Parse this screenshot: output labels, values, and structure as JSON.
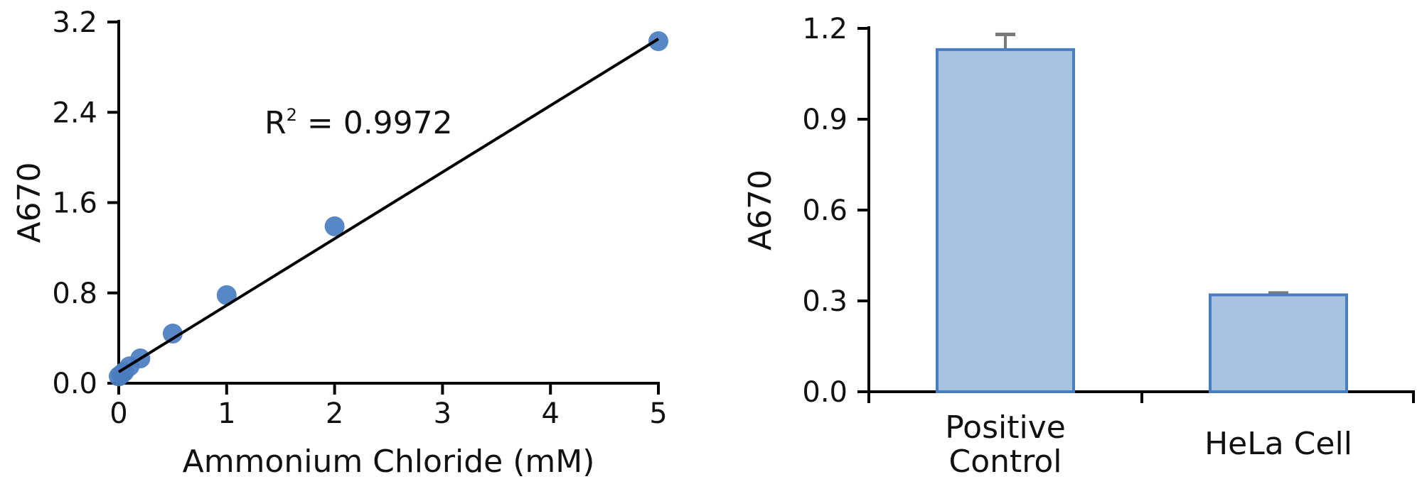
{
  "chart_data": [
    {
      "type": "scatter",
      "title": "",
      "xlabel": "Ammonium Chloride (mM)",
      "ylabel": "A670",
      "xlim": [
        0,
        5
      ],
      "ylim": [
        0,
        3.2
      ],
      "xticks": [
        "0",
        "1",
        "2",
        "3",
        "4",
        "5"
      ],
      "yticks": [
        "0.0",
        "0.8",
        "1.6",
        "2.4",
        "3.2"
      ],
      "points": [
        {
          "x": 0,
          "y": 0.06
        },
        {
          "x": 0.025,
          "y": 0.08
        },
        {
          "x": 0.05,
          "y": 0.1
        },
        {
          "x": 0.1,
          "y": 0.15
        },
        {
          "x": 0.2,
          "y": 0.22
        },
        {
          "x": 0.5,
          "y": 0.44
        },
        {
          "x": 1,
          "y": 0.78
        },
        {
          "x": 2,
          "y": 1.39
        },
        {
          "x": 5,
          "y": 3.03
        }
      ],
      "fit_line": {
        "x": [
          0,
          5
        ],
        "y": [
          0.1,
          3.05
        ]
      },
      "annotation": {
        "base": "R",
        "sup": "2",
        "rest": " = 0.9972"
      },
      "marker_color": "#4a7dc0",
      "grid": false
    },
    {
      "type": "bar",
      "title": "",
      "xlabel": "",
      "ylabel": "A670",
      "ylim": [
        0,
        1.2
      ],
      "yticks": [
        "0.0",
        "0.3",
        "0.6",
        "0.9",
        "1.2"
      ],
      "categories": [
        [
          "Positive",
          "Control"
        ],
        [
          "HeLa Cell"
        ]
      ],
      "values": [
        1.13,
        0.32
      ],
      "errors": [
        0.05,
        0.006
      ],
      "bar_fill": "#a9c2e0",
      "bar_stroke": "#4a7dc0",
      "error_color": "#7a7a7a",
      "grid": false
    }
  ]
}
